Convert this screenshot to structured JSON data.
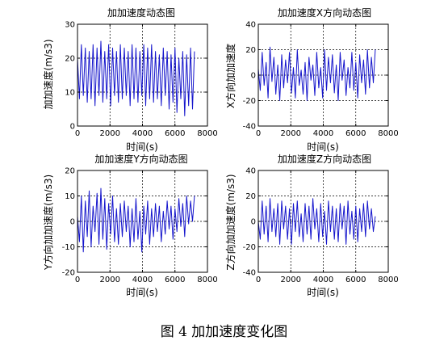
{
  "caption": "图 4  加加速度变化图",
  "colors": {
    "line": "#1515cc",
    "axis": "#000000",
    "grid": "#000000"
  },
  "chart_data": [
    {
      "type": "line",
      "title": "加加速度动态图",
      "xlabel": "时间(s)",
      "ylabel": "加加速度(m/s3)",
      "xlim": [
        0,
        8000
      ],
      "ylim": [
        0,
        30
      ],
      "xticks": [
        0,
        2000,
        4000,
        6000,
        8000
      ],
      "yticks": [
        0,
        10,
        20,
        30
      ],
      "grid": true,
      "x": [
        0,
        120,
        240,
        360,
        480,
        600,
        720,
        840,
        960,
        1080,
        1200,
        1320,
        1440,
        1560,
        1680,
        1800,
        1920,
        2040,
        2160,
        2280,
        2400,
        2520,
        2640,
        2760,
        2880,
        3000,
        3120,
        3240,
        3360,
        3480,
        3600,
        3720,
        3840,
        3960,
        4080,
        4200,
        4320,
        4440,
        4560,
        4680,
        4800,
        4920,
        5040,
        5160,
        5280,
        5400,
        5520,
        5640,
        5760,
        5880,
        6000,
        6120,
        6240,
        6360,
        6480,
        6600,
        6720,
        6840,
        6960,
        7080,
        7200
      ],
      "y": [
        20,
        8,
        24,
        9,
        23,
        7,
        22,
        8,
        24,
        6,
        23,
        9,
        25,
        7,
        22,
        8,
        24,
        6,
        23,
        9,
        22,
        7,
        24,
        8,
        23,
        9,
        22,
        6,
        24,
        8,
        23,
        7,
        22,
        9,
        24,
        6,
        23,
        8,
        24,
        7,
        22,
        8,
        21,
        6,
        23,
        9,
        22,
        5,
        21,
        7,
        23,
        4,
        20,
        8,
        22,
        3,
        21,
        6,
        23,
        5,
        22
      ]
    },
    {
      "type": "line",
      "title": "加加速度X方向动态图",
      "xlabel": "时间(s)",
      "ylabel": "X方向加加速度",
      "xlim": [
        0,
        8000
      ],
      "ylim": [
        -40,
        40
      ],
      "xticks": [
        0,
        2000,
        4000,
        6000,
        8000
      ],
      "yticks": [
        -40,
        -20,
        0,
        20,
        40
      ],
      "grid": true,
      "x": [
        0,
        120,
        240,
        360,
        480,
        600,
        720,
        840,
        960,
        1080,
        1200,
        1320,
        1440,
        1560,
        1680,
        1800,
        1920,
        2040,
        2160,
        2280,
        2400,
        2520,
        2640,
        2760,
        2880,
        3000,
        3120,
        3240,
        3360,
        3480,
        3600,
        3720,
        3840,
        3960,
        4080,
        4200,
        4320,
        4440,
        4560,
        4680,
        4800,
        4920,
        5040,
        5160,
        5280,
        5400,
        5520,
        5640,
        5760,
        5880,
        6000,
        6120,
        6240,
        6360,
        6480,
        6600,
        6720,
        6840,
        6960,
        7080,
        7200
      ],
      "y": [
        5,
        -12,
        18,
        -8,
        10,
        -18,
        22,
        -5,
        14,
        -15,
        8,
        -20,
        16,
        -10,
        12,
        -6,
        18,
        -14,
        6,
        -18,
        20,
        -8,
        4,
        -15,
        10,
        -20,
        14,
        -4,
        8,
        -16,
        18,
        -10,
        6,
        -18,
        20,
        -12,
        14,
        -6,
        16,
        -14,
        8,
        -20,
        18,
        -4,
        12,
        -16,
        6,
        -10,
        18,
        -12,
        10,
        -18,
        16,
        -6,
        12,
        -15,
        20,
        -10,
        14,
        -6,
        20
      ]
    },
    {
      "type": "line",
      "title": "加加速度Y方向动态图",
      "xlabel": "时间(s)",
      "ylabel": "Y方向加加速度(m/s3)",
      "xlim": [
        0,
        8000
      ],
      "ylim": [
        -20,
        20
      ],
      "xticks": [
        0,
        2000,
        4000,
        6000,
        8000
      ],
      "yticks": [
        -20,
        -10,
        0,
        10,
        20
      ],
      "grid": true,
      "x": [
        0,
        120,
        240,
        360,
        480,
        600,
        720,
        840,
        960,
        1080,
        1200,
        1320,
        1440,
        1560,
        1680,
        1800,
        1920,
        2040,
        2160,
        2280,
        2400,
        2520,
        2640,
        2760,
        2880,
        3000,
        3120,
        3240,
        3360,
        3480,
        3600,
        3720,
        3840,
        3960,
        4080,
        4200,
        4320,
        4440,
        4560,
        4680,
        4800,
        4920,
        5040,
        5160,
        5280,
        5400,
        5520,
        5640,
        5760,
        5880,
        6000,
        6120,
        6240,
        6360,
        6480,
        6600,
        6720,
        6840,
        6960,
        7080,
        7200
      ],
      "y": [
        2,
        -8,
        10,
        -12,
        8,
        -6,
        12,
        -10,
        6,
        -4,
        11,
        -9,
        13,
        -7,
        9,
        -11,
        7,
        -5,
        10,
        -8,
        5,
        -9,
        7,
        -6,
        8,
        -4,
        6,
        -10,
        5,
        -8,
        9,
        -7,
        4,
        -12,
        6,
        -5,
        8,
        -9,
        5,
        -6,
        7,
        -4,
        6,
        -8,
        4,
        -5,
        8,
        -3,
        6,
        -7,
        5,
        -4,
        9,
        -2,
        7,
        -6,
        10,
        -1,
        8,
        0,
        10
      ]
    },
    {
      "type": "line",
      "title": "加加速度Z方向动态图",
      "xlabel": "时间(s)",
      "ylabel": "Z方向加加速度(m/s3)",
      "xlim": [
        0,
        8000
      ],
      "ylim": [
        -40,
        40
      ],
      "xticks": [
        0,
        2000,
        4000,
        6000,
        8000
      ],
      "yticks": [
        -40,
        -20,
        0,
        20,
        40
      ],
      "grid": true,
      "x": [
        0,
        120,
        240,
        360,
        480,
        600,
        720,
        840,
        960,
        1080,
        1200,
        1320,
        1440,
        1560,
        1680,
        1800,
        1920,
        2040,
        2160,
        2280,
        2400,
        2520,
        2640,
        2760,
        2880,
        3000,
        3120,
        3240,
        3360,
        3480,
        3600,
        3720,
        3840,
        3960,
        4080,
        4200,
        4320,
        4440,
        4560,
        4680,
        4800,
        4920,
        5040,
        5160,
        5280,
        5400,
        5520,
        5640,
        5760,
        5880,
        6000,
        6120,
        6240,
        6360,
        6480,
        6600,
        6720,
        6840,
        6960,
        7080,
        7200
      ],
      "y": [
        0,
        -14,
        16,
        -10,
        12,
        -16,
        18,
        -8,
        10,
        -12,
        14,
        -18,
        16,
        -6,
        12,
        -14,
        10,
        -18,
        14,
        -8,
        16,
        -12,
        6,
        -16,
        14,
        -10,
        12,
        -14,
        18,
        -6,
        10,
        -16,
        14,
        -12,
        8,
        -18,
        16,
        -8,
        12,
        -14,
        10,
        -16,
        14,
        -6,
        12,
        -18,
        16,
        -10,
        8,
        -14,
        12,
        -16,
        10,
        -8,
        14,
        -12,
        16,
        -6,
        10,
        -8,
        4
      ]
    }
  ]
}
